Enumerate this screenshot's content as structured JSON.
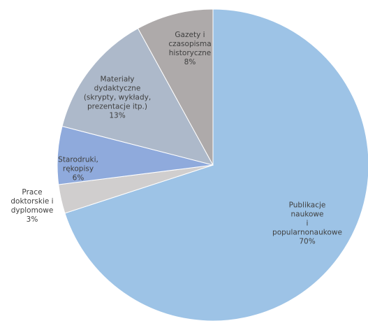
{
  "chart_data": {
    "type": "pie",
    "categories": [
      "Publikacje naukowe\ni\npopularnonaukowe",
      "Prace\ndoktorskie i\ndyplomowe",
      "Starodruki,\nrękopisy",
      "Materiały\ndydaktyczne\n(skrypty, wykłady,\nprezentacje itp.)",
      "Gazety i\nczasopisma\nhistoryczne"
    ],
    "values": [
      70,
      3,
      6,
      13,
      8
    ],
    "value_labels": [
      "70%",
      "3%",
      "6%",
      "13%",
      "8%"
    ],
    "colors": [
      "#9dc3e6",
      "#d0cece",
      "#8faadc",
      "#adb9ca",
      "#aeaaaa"
    ]
  }
}
